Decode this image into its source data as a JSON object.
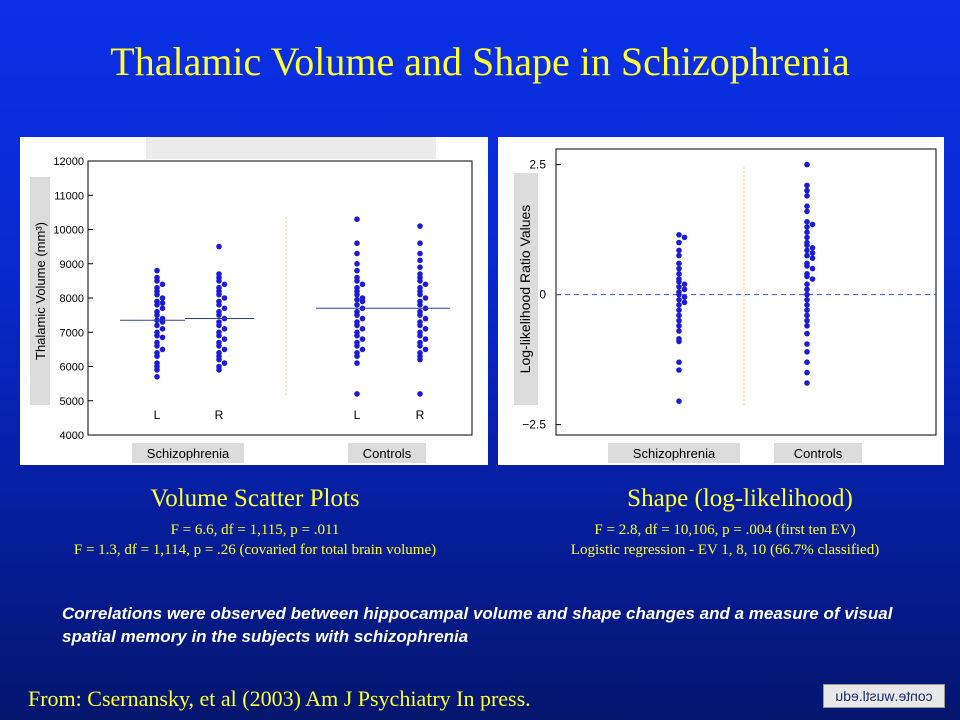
{
  "slide": {
    "title": "Thalamic Volume and Shape in Schizophrenia",
    "left_subtitle": "Volume Scatter Plots",
    "left_stats": [
      "F = 6.6, df = 1,115, p = .011",
      "F = 1.3, df = 1,114, p = .26 (covaried for total brain volume)"
    ],
    "right_subtitle": "Shape (log-likelihood)",
    "right_stats": [
      "F = 2.8, df = 10,106, p = .004 (first ten EV)",
      "Logistic regression - EV 1, 8, 10 (66.7% classified)"
    ],
    "note": "Correlations were observed between hippocampal volume and shape changes and a measure of visual spatial memory in the subjects with schizophrenia",
    "source": "From: Csernansky, et al (2003) Am J Psychiatry In press.",
    "logo_text": "conte.wustl.edu"
  },
  "chart_data": [
    {
      "type": "scatter",
      "ylabel": "Thalamic Volume (mm³)",
      "ylim": [
        4000,
        12000
      ],
      "yticks": [
        4000,
        5000,
        6000,
        7000,
        8000,
        9000,
        10000,
        11000,
        12000
      ],
      "ytick_labels": [
        "4000",
        "5000",
        "6000",
        "7000",
        "8000",
        "9000",
        "10000",
        "11000",
        "12000"
      ],
      "group_labels": [
        "Schizophrenia",
        "Controls"
      ],
      "series": [
        {
          "name": "L",
          "group": "Schizophrenia",
          "mean": 7350,
          "values": [
            8800,
            8600,
            8500,
            8400,
            8300,
            8200,
            8100,
            8000,
            7900,
            7850,
            7800,
            7700,
            7600,
            7500,
            7400,
            7350,
            7300,
            7200,
            7100,
            7000,
            6900,
            6850,
            6700,
            6600,
            6500,
            6400,
            6300,
            6100,
            6000,
            5900,
            5700
          ]
        },
        {
          "name": "R",
          "group": "Schizophrenia",
          "mean": 7400,
          "values": [
            9500,
            8700,
            8600,
            8500,
            8400,
            8300,
            8200,
            8100,
            8000,
            7900,
            7800,
            7700,
            7600,
            7500,
            7400,
            7300,
            7200,
            7100,
            7000,
            6900,
            6800,
            6700,
            6600,
            6500,
            6400,
            6300,
            6200,
            6100,
            6000,
            5900
          ]
        },
        {
          "name": "L",
          "group": "Controls",
          "mean": 7700,
          "values": [
            10300,
            9600,
            9300,
            9000,
            8800,
            8600,
            8500,
            8400,
            8300,
            8200,
            8100,
            8000,
            7950,
            7900,
            7800,
            7700,
            7600,
            7500,
            7400,
            7300,
            7200,
            7100,
            7000,
            6900,
            6800,
            6700,
            6600,
            6500,
            6400,
            6300,
            6100,
            5200
          ]
        },
        {
          "name": "R",
          "group": "Controls",
          "mean": 7700,
          "values": [
            10100,
            9600,
            9300,
            9100,
            8900,
            8700,
            8600,
            8500,
            8400,
            8300,
            8200,
            8100,
            8000,
            7900,
            7800,
            7700,
            7600,
            7500,
            7400,
            7300,
            7200,
            7100,
            7000,
            6900,
            6800,
            6700,
            6600,
            6500,
            6400,
            6300,
            6200,
            5200
          ]
        }
      ]
    },
    {
      "type": "scatter",
      "ylabel": "Log-likelihood Ratio Values",
      "ylim": [
        -2.7,
        2.8
      ],
      "yticks": [
        -2.5,
        0,
        2.5
      ],
      "ytick_labels": [
        "−2.5",
        "0",
        "2.5"
      ],
      "reference_line": 0,
      "group_labels": [
        "Schizophrenia",
        "Controls"
      ],
      "series": [
        {
          "name": "Schizophrenia",
          "values": [
            1.15,
            1.1,
            1.0,
            0.85,
            0.75,
            0.6,
            0.5,
            0.4,
            0.3,
            0.25,
            0.2,
            0.15,
            0.1,
            0.05,
            0.0,
            -0.05,
            -0.1,
            -0.15,
            -0.2,
            -0.3,
            -0.4,
            -0.5,
            -0.6,
            -0.7,
            -0.85,
            -0.9,
            -1.3,
            -1.45,
            -2.05
          ]
        },
        {
          "name": "Controls",
          "values": [
            2.5,
            2.1,
            2.0,
            1.9,
            1.7,
            1.6,
            1.4,
            1.35,
            1.3,
            1.2,
            1.1,
            1.0,
            0.95,
            0.9,
            0.85,
            0.8,
            0.75,
            0.7,
            0.6,
            0.55,
            0.5,
            0.4,
            0.35,
            0.3,
            0.2,
            0.1,
            0.0,
            -0.1,
            -0.2,
            -0.3,
            -0.4,
            -0.5,
            -0.6,
            -0.75,
            -0.95,
            -1.1,
            -1.3,
            -1.5,
            -1.7
          ]
        }
      ]
    }
  ]
}
